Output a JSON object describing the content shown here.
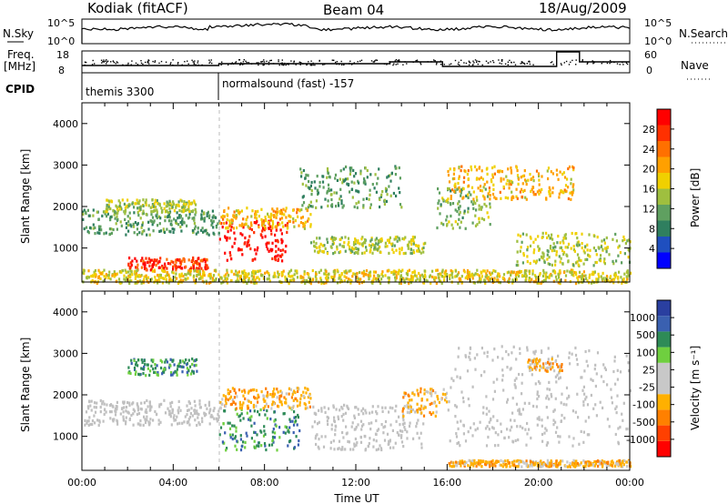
{
  "header": {
    "station": "Kodiak (fitACF)",
    "beam": "Beam 04",
    "date": "18/Aug/2009"
  },
  "strips": {
    "nsky_label": "N.Sky",
    "nsky_ticks": [
      "10^5",
      "10^0"
    ],
    "nsearch_label": "N.Search",
    "nsearch_ticks": [
      "10^5",
      "10^0"
    ],
    "freq_label_1": "Freq.",
    "freq_label_2": "[MHz]",
    "freq_ticks": [
      "18",
      "8"
    ],
    "nave_label": "Nave",
    "nave_ticks": [
      "60",
      "0"
    ],
    "cpid_label": "CPID",
    "cpid_mode_1": "themis 3300",
    "cpid_mode_2": "normalsound (fast) -157"
  },
  "colors": {
    "power_scale": [
      "#0000ff",
      "#1f4fbf",
      "#2f7f5f",
      "#5fa060",
      "#9fbf3f",
      "#f0d000",
      "#ffa000",
      "#ff7000",
      "#ff3000",
      "#ff0000"
    ],
    "velocity_scale": [
      "#2a3fa0",
      "#3a60b0",
      "#2e8b57",
      "#6fcf3f",
      "#c8c8c8",
      "#c8c8c8",
      "#ffb000",
      "#ff8000",
      "#ff4000",
      "#ff0000"
    ],
    "ground_scatter": "#c0c0c0"
  },
  "chart_data": [
    {
      "type": "heatmap",
      "name": "power",
      "title": "Kodiak (fitACF)   Beam 04   18/Aug/2009",
      "xlabel": "Time UT",
      "ylabel": "Slant Range [km]",
      "xticks": [
        "00:00",
        "04:00",
        "08:00",
        "12:00",
        "16:00",
        "20:00",
        "00:00"
      ],
      "xlim_hours": [
        0,
        24
      ],
      "yticks": [
        "1000",
        "2000",
        "3000",
        "4000"
      ],
      "ylim_km": [
        180,
        4500
      ],
      "colorbar_label": "Power [dB]",
      "colorbar_ticks": [
        "4",
        "8",
        "12",
        "16",
        "20",
        "24",
        "28"
      ],
      "colorbar_range": [
        0,
        30
      ],
      "regions": [
        {
          "t0": 0.0,
          "t1": 6.0,
          "r0": 1350,
          "r1": 1950,
          "value": 10
        },
        {
          "t0": 1.0,
          "t1": 5.0,
          "r0": 1900,
          "r1": 2200,
          "value": 14
        },
        {
          "t0": 2.0,
          "t1": 5.5,
          "r0": 500,
          "r1": 800,
          "value": 26
        },
        {
          "t0": 6.0,
          "t1": 9.0,
          "r0": 700,
          "r1": 1700,
          "value": 29
        },
        {
          "t0": 6.0,
          "t1": 10.0,
          "r0": 1500,
          "r1": 2000,
          "value": 18
        },
        {
          "t0": 9.5,
          "t1": 14.0,
          "r0": 2000,
          "r1": 3000,
          "value": 10
        },
        {
          "t0": 10.0,
          "t1": 15.0,
          "r0": 900,
          "r1": 1300,
          "value": 14
        },
        {
          "t0": 15.5,
          "t1": 18.0,
          "r0": 1500,
          "r1": 2500,
          "value": 12
        },
        {
          "t0": 16.0,
          "t1": 21.5,
          "r0": 2200,
          "r1": 3000,
          "value": 18
        },
        {
          "t0": 19.0,
          "t1": 24.0,
          "r0": 600,
          "r1": 1400,
          "value": 14
        },
        {
          "t0": 0.0,
          "t1": 24.0,
          "r0": 180,
          "r1": 500,
          "value": 16
        }
      ]
    },
    {
      "type": "heatmap",
      "name": "velocity",
      "xlabel": "Time UT",
      "ylabel": "Slant Range [km]",
      "xticks": [
        "00:00",
        "04:00",
        "08:00",
        "12:00",
        "16:00",
        "20:00",
        "00:00"
      ],
      "xlim_hours": [
        0,
        24
      ],
      "yticks": [
        "1000",
        "2000",
        "3000",
        "4000"
      ],
      "ylim_km": [
        180,
        4500
      ],
      "colorbar_label": "Velocity [m s⁻¹]",
      "colorbar_ticks": [
        "1000",
        "500",
        "100",
        "25",
        "-25",
        "-100",
        "-500",
        "-1000"
      ],
      "regions": [
        {
          "t0": 0.0,
          "t1": 6.0,
          "r0": 1300,
          "r1": 1900,
          "value": "ground"
        },
        {
          "t0": 2.0,
          "t1": 5.0,
          "r0": 2500,
          "r1": 2900,
          "value": 200
        },
        {
          "t0": 6.0,
          "t1": 9.5,
          "r0": 700,
          "r1": 1700,
          "value": 150
        },
        {
          "t0": 6.0,
          "t1": 10.0,
          "r0": 1700,
          "r1": 2200,
          "value": -150
        },
        {
          "t0": 10.0,
          "t1": 15.0,
          "r0": 700,
          "r1": 1800,
          "value": "ground"
        },
        {
          "t0": 14.0,
          "t1": 16.0,
          "r0": 1500,
          "r1": 2200,
          "value": -400
        },
        {
          "t0": 16.0,
          "t1": 24.0,
          "r0": 800,
          "r1": 3200,
          "value": "ground"
        },
        {
          "t0": 19.5,
          "t1": 21.0,
          "r0": 2600,
          "r1": 2900,
          "value": -400
        },
        {
          "t0": 16.0,
          "t1": 24.0,
          "r0": 300,
          "r1": 450,
          "value": -200
        }
      ]
    }
  ]
}
